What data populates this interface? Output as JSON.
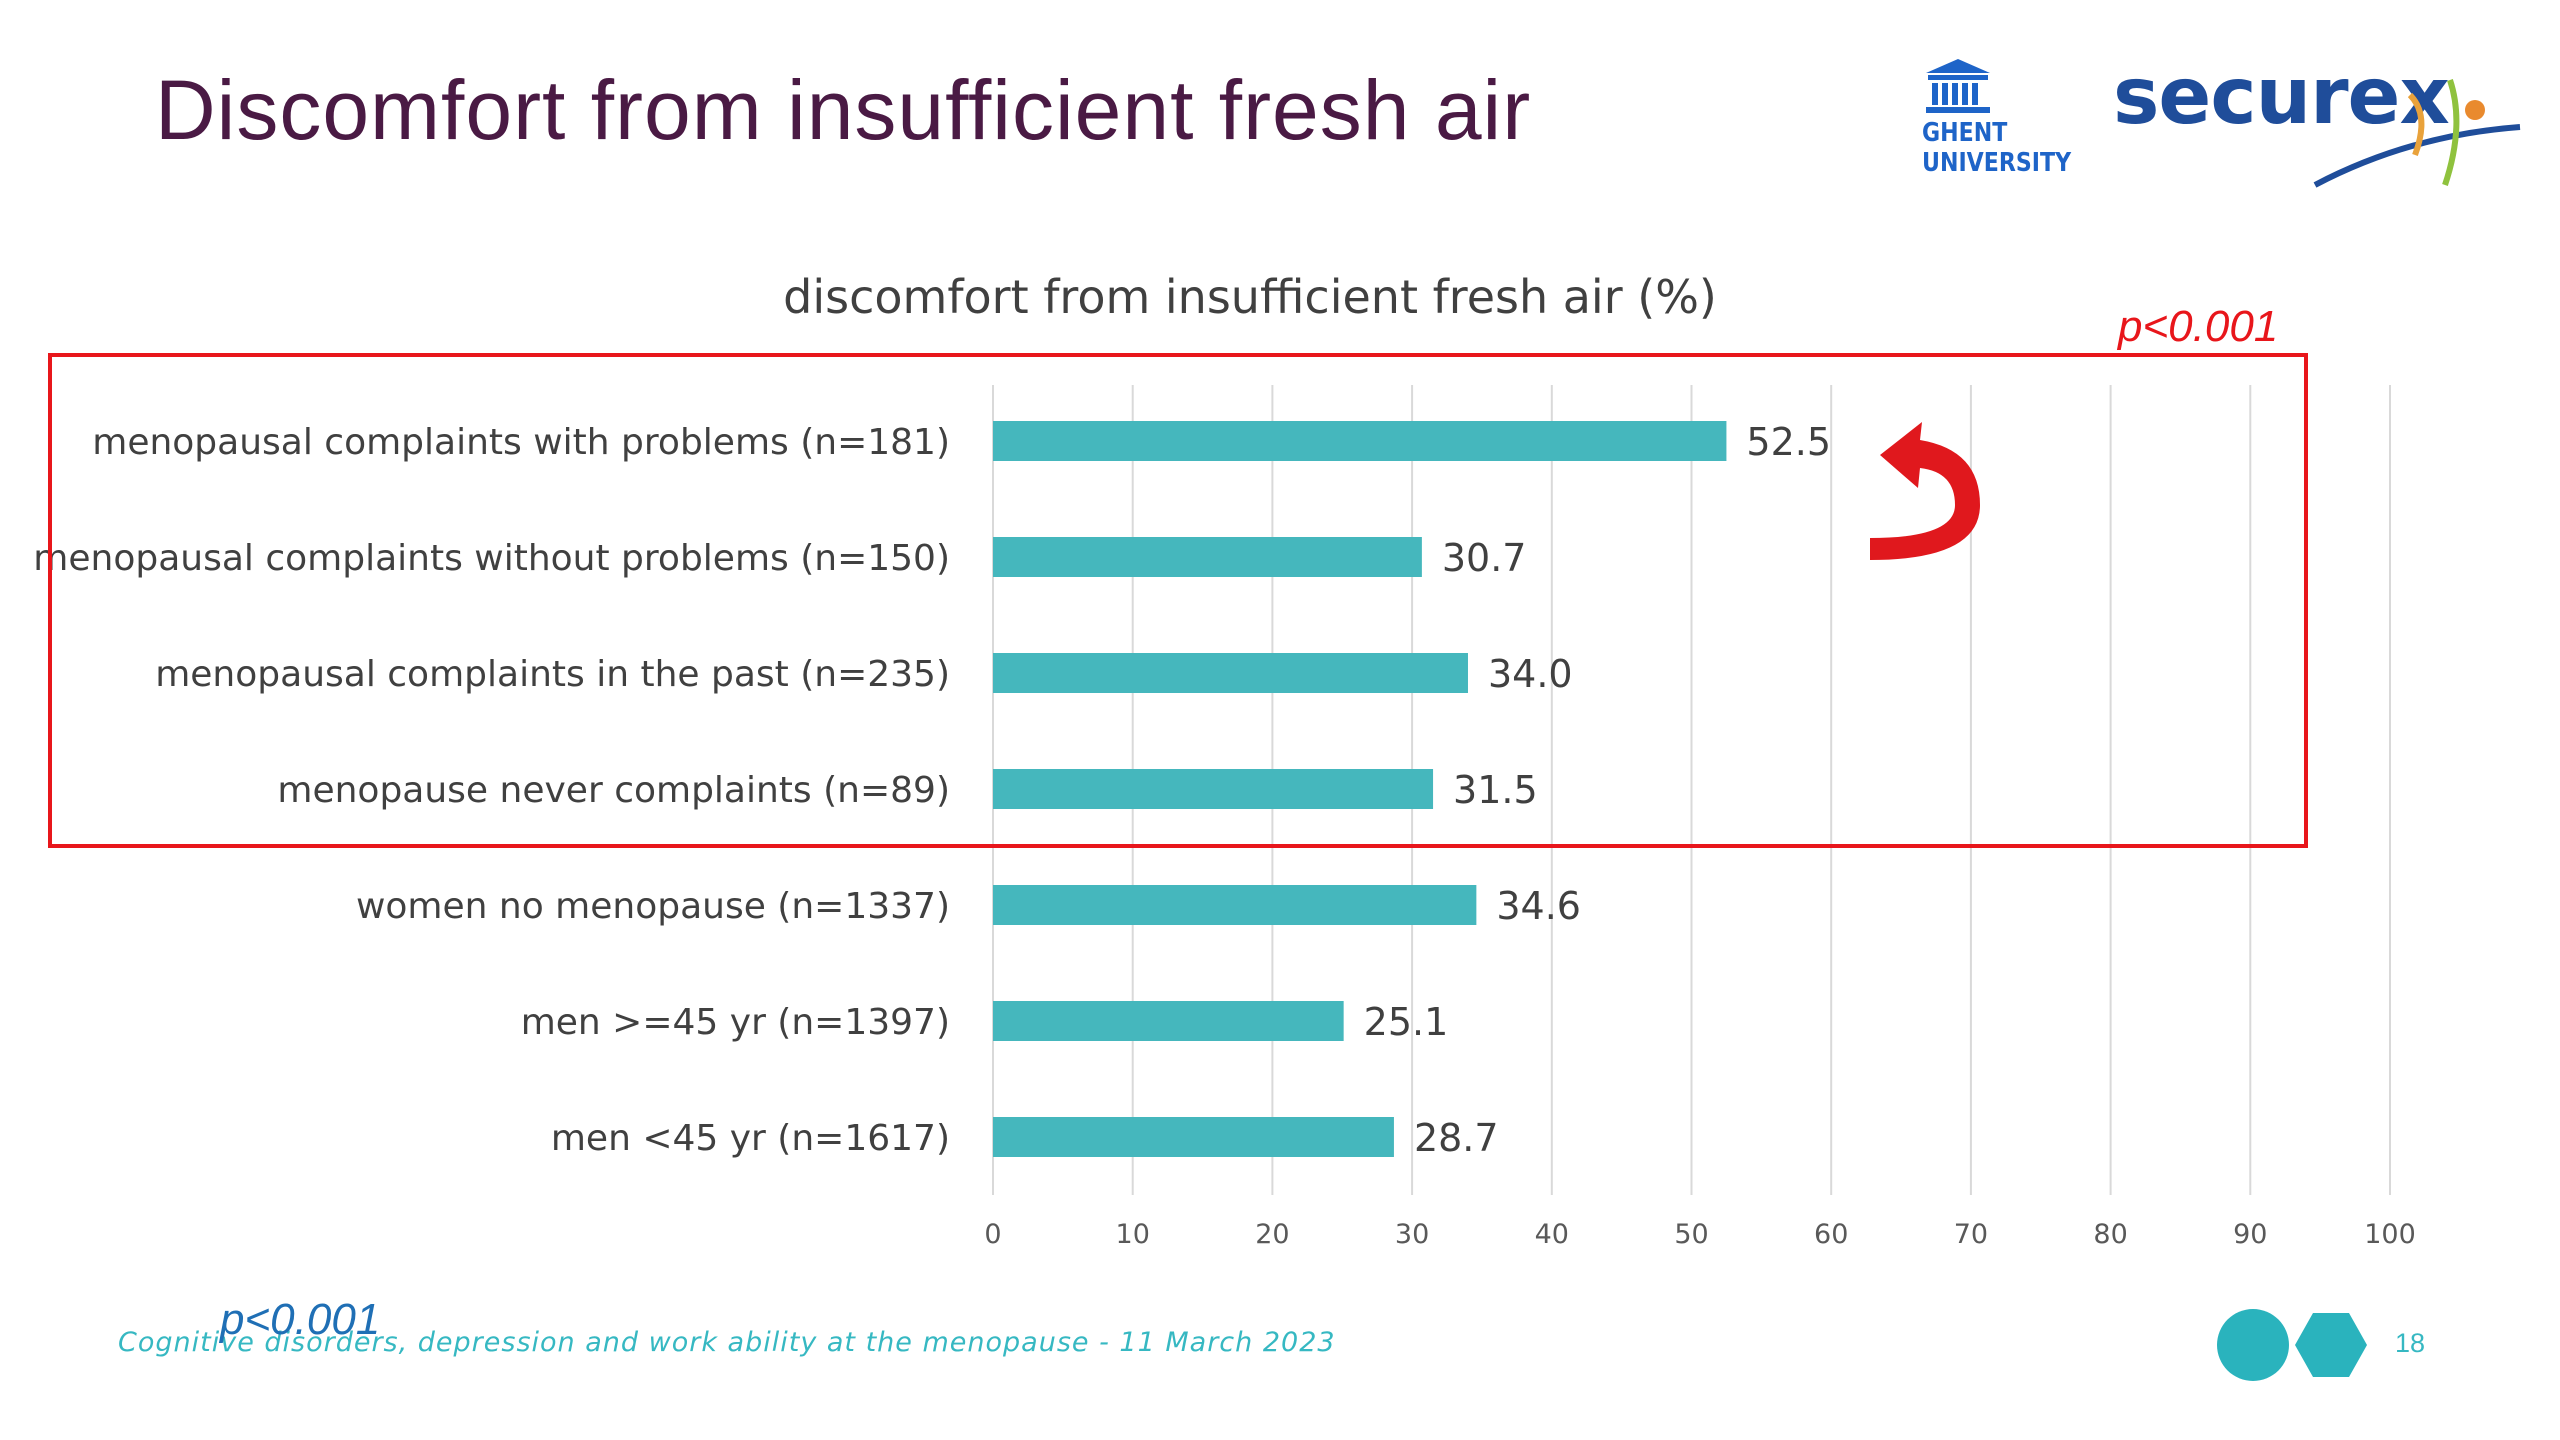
{
  "slide": {
    "title": "Discomfort from insufficient fresh air",
    "footer": "Cognitive disorders, depression and work ability at the menopause - 11 March 2023",
    "page_number": "18",
    "p_value_top": "p<0.001",
    "p_value_bottom": "p<0.001"
  },
  "logos": {
    "ghent_line1": "GHENT",
    "ghent_line2": "UNIVERSITY",
    "securex": "securex"
  },
  "colors": {
    "bar": "#45b7bd",
    "title": "#4a1a44",
    "highlight": "#e8161b",
    "footer": "#36b8c2"
  },
  "chart_data": {
    "type": "bar",
    "orientation": "horizontal",
    "title": "discomfort from insufficient fresh air (%)",
    "categories": [
      "menopausal complaints with problems (n=181)",
      "menopausal complaints without problems (n=150)",
      "menopausal complaints in the past (n=235)",
      "menopause never complaints (n=89)",
      "women no menopause (n=1337)",
      "men >=45 yr (n=1397)",
      "men <45 yr (n=1617)"
    ],
    "values": [
      52.5,
      30.7,
      34.0,
      31.5,
      34.6,
      25.1,
      28.7
    ],
    "value_labels": [
      "52.5",
      "30.7",
      "34.0",
      "31.5",
      "34.6",
      "25.1",
      "28.7"
    ],
    "xlim": [
      0,
      100
    ],
    "xticks": [
      "0",
      "10",
      "20",
      "30",
      "40",
      "50",
      "60",
      "70",
      "80",
      "90",
      "100"
    ],
    "grid": "vertical",
    "legend": "none"
  }
}
